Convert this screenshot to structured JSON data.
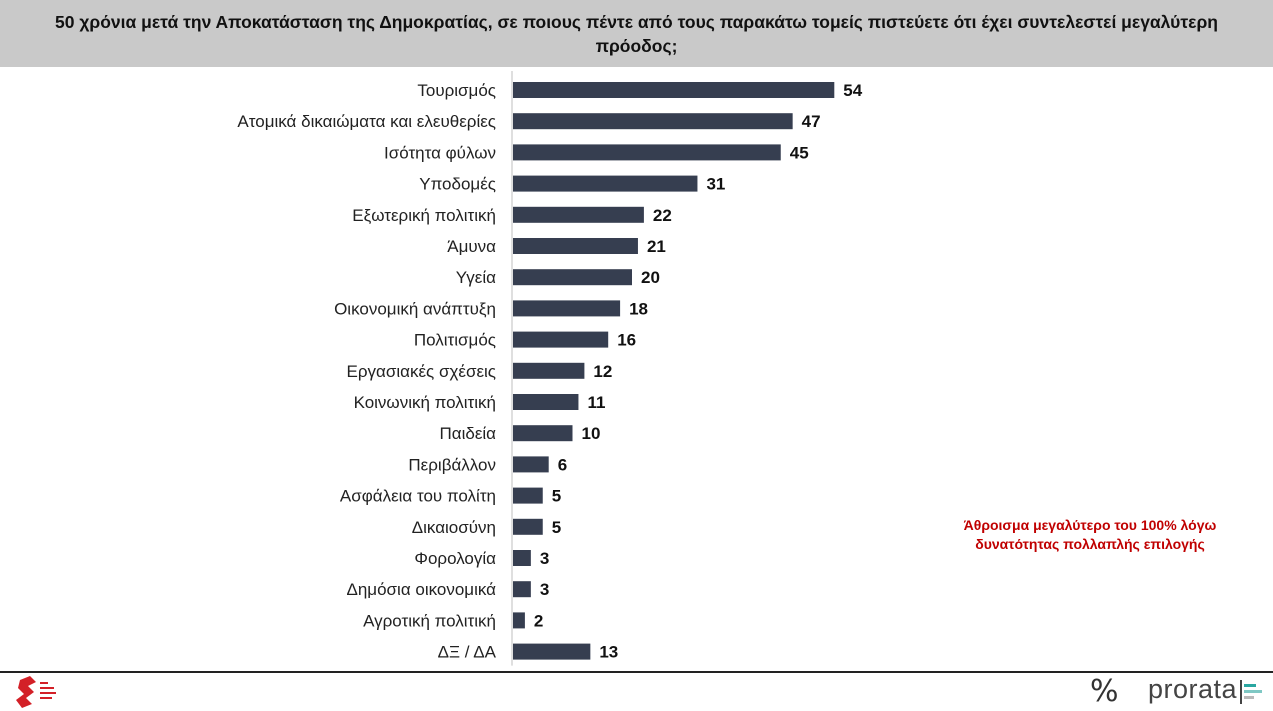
{
  "header": {
    "title": "50 χρόνια μετά την Αποκατάσταση της Δημοκρατίας, σε ποιους πέντε από τους παρακάτω τομείς πιστεύετε ότι έχει συντελεστεί μεγαλύτερη πρόοδος;"
  },
  "note": "Άθροισμα μεγαλύτερο του 100% λόγω δυνατότητας πολλαπλής επιλογής",
  "brand": {
    "name": "prorata",
    "icon": "percent-icon"
  },
  "colors": {
    "bar": "#363e50",
    "header_bg": "#c9c9c9",
    "note": "#c00000"
  },
  "chart_data": {
    "type": "bar",
    "orientation": "horizontal",
    "categories": [
      "Τουρισμός",
      "Ατομικά δικαιώματα και ελευθερίες",
      "Ισότητα φύλων",
      "Υποδομές",
      "Εξωτερική πολιτική",
      "Άμυνα",
      "Υγεία",
      "Οικονομική ανάπτυξη",
      "Πολιτισμός",
      "Εργασιακές σχέσεις",
      "Κοινωνική πολιτική",
      "Παιδεία",
      "Περιβάλλον",
      "Ασφάλεια του πολίτη",
      "Δικαιοσύνη",
      "Φορολογία",
      "Δημόσια οικονομικά",
      "Αγροτική πολιτική",
      "ΔΞ / ΔΑ"
    ],
    "values": [
      54,
      47,
      45,
      31,
      22,
      21,
      20,
      18,
      16,
      12,
      11,
      10,
      6,
      5,
      5,
      3,
      3,
      2,
      13
    ],
    "title": "",
    "xlabel": "",
    "ylabel": "",
    "xlim": [
      0,
      60
    ],
    "grid": false,
    "legend": "none"
  }
}
